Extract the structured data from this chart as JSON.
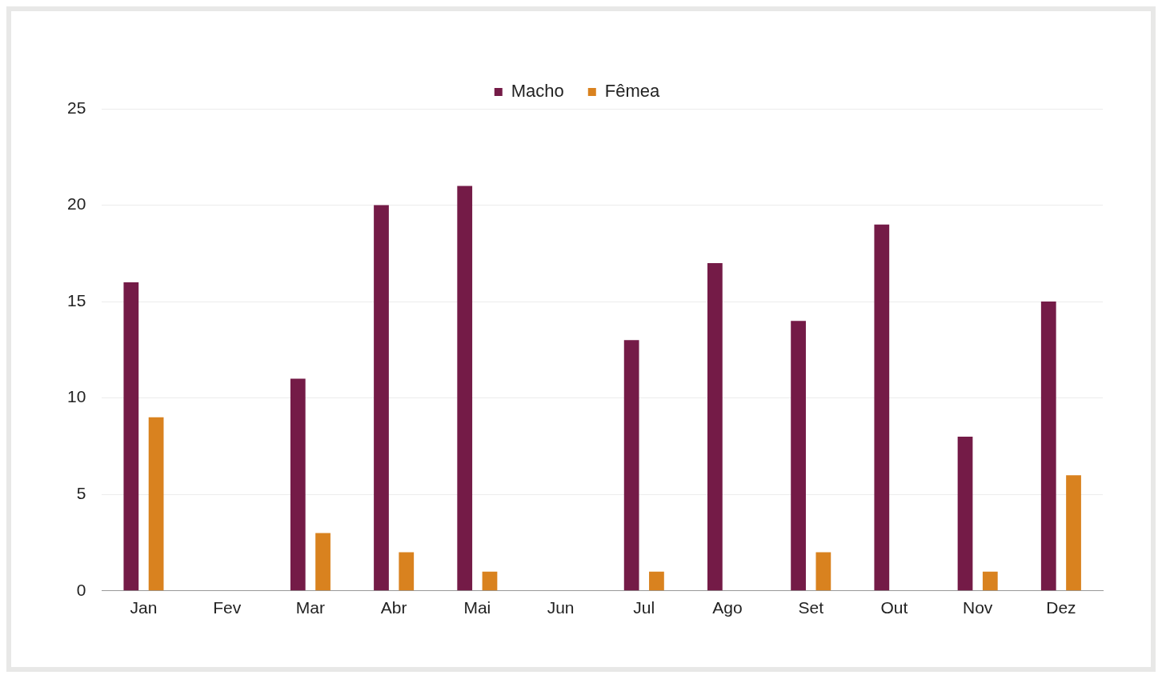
{
  "chart_data": {
    "type": "bar",
    "categories": [
      "Jan",
      "Fev",
      "Mar",
      "Abr",
      "Mai",
      "Jun",
      "Jul",
      "Ago",
      "Set",
      "Out",
      "Nov",
      "Dez"
    ],
    "series": [
      {
        "name": "Macho",
        "color": "#741b47",
        "values": [
          16,
          0,
          11,
          20,
          21,
          0,
          13,
          17,
          14,
          19,
          8,
          15
        ]
      },
      {
        "name": "Fêmea",
        "color": "#d9821f",
        "values": [
          9,
          0,
          3,
          2,
          1,
          0,
          1,
          0,
          2,
          0,
          1,
          6
        ]
      }
    ],
    "ylim": [
      0,
      25
    ],
    "yticks": [
      0,
      5,
      10,
      15,
      20,
      25
    ],
    "grid": "y",
    "legend": "top"
  }
}
